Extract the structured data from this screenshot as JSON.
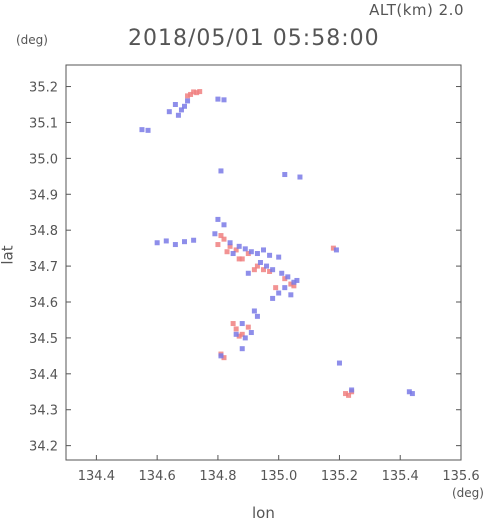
{
  "header": {
    "altitude": "ALT(km) 2.0",
    "datetime": "2018/05/01 05:58:00"
  },
  "chart_data": {
    "type": "scatter",
    "title": "2018/05/01 05:58:00",
    "subtitle": "ALT(km) 2.0",
    "xlabel": "lon",
    "ylabel": "lat",
    "xunit": "(deg)",
    "yunit": "(deg)",
    "xlim": [
      134.3,
      135.6
    ],
    "ylim": [
      34.16,
      35.26
    ],
    "xticks": [
      "134.4",
      "134.6",
      "134.8",
      "135.0",
      "135.2",
      "135.4",
      "135.6"
    ],
    "yticks": [
      "34.2",
      "34.3",
      "34.4",
      "34.5",
      "34.6",
      "34.7",
      "34.8",
      "34.9",
      "35.0",
      "35.1",
      "35.2"
    ],
    "grid": false,
    "colors": {
      "positive": "#f08080",
      "negative": "#7a7ae6",
      "axis": "#555555"
    },
    "series": [
      {
        "color": "#f08080",
        "points": [
          [
            134.72,
            35.185
          ],
          [
            134.73,
            35.183
          ],
          [
            134.71,
            35.178
          ],
          [
            134.74,
            35.186
          ],
          [
            134.7,
            35.174
          ],
          [
            134.81,
            34.785
          ],
          [
            134.82,
            34.775
          ],
          [
            134.8,
            34.76
          ],
          [
            134.84,
            34.755
          ],
          [
            134.83,
            34.74
          ],
          [
            134.86,
            34.745
          ],
          [
            134.9,
            34.735
          ],
          [
            134.88,
            34.72
          ],
          [
            134.93,
            34.7
          ],
          [
            134.95,
            34.69
          ],
          [
            134.97,
            34.685
          ],
          [
            135.02,
            34.665
          ],
          [
            135.04,
            34.65
          ],
          [
            135.05,
            34.645
          ],
          [
            134.99,
            34.64
          ],
          [
            134.92,
            34.69
          ],
          [
            134.87,
            34.72
          ],
          [
            134.85,
            34.54
          ],
          [
            134.86,
            34.525
          ],
          [
            134.88,
            34.51
          ],
          [
            134.9,
            34.53
          ],
          [
            134.87,
            34.505
          ],
          [
            134.81,
            34.455
          ],
          [
            134.82,
            34.445
          ],
          [
            135.18,
            34.75
          ],
          [
            135.23,
            34.34
          ],
          [
            135.22,
            34.345
          ],
          [
            135.24,
            34.35
          ]
        ]
      },
      {
        "color": "#7a7ae6",
        "points": [
          [
            134.66,
            35.15
          ],
          [
            134.68,
            35.135
          ],
          [
            134.64,
            35.13
          ],
          [
            134.69,
            35.145
          ],
          [
            134.67,
            35.12
          ],
          [
            134.7,
            35.16
          ],
          [
            134.55,
            35.08
          ],
          [
            134.57,
            35.078
          ],
          [
            134.8,
            35.165
          ],
          [
            134.82,
            35.163
          ],
          [
            134.81,
            34.965
          ],
          [
            135.02,
            34.955
          ],
          [
            135.07,
            34.948
          ],
          [
            134.6,
            34.765
          ],
          [
            134.63,
            34.77
          ],
          [
            134.66,
            34.76
          ],
          [
            134.69,
            34.768
          ],
          [
            134.72,
            34.772
          ],
          [
            134.8,
            34.83
          ],
          [
            134.82,
            34.815
          ],
          [
            134.79,
            34.79
          ],
          [
            134.84,
            34.765
          ],
          [
            134.87,
            34.755
          ],
          [
            134.89,
            34.748
          ],
          [
            134.91,
            34.74
          ],
          [
            134.93,
            34.735
          ],
          [
            134.95,
            34.745
          ],
          [
            134.97,
            34.73
          ],
          [
            135.0,
            34.725
          ],
          [
            134.94,
            34.71
          ],
          [
            134.96,
            34.7
          ],
          [
            134.98,
            34.69
          ],
          [
            135.01,
            34.68
          ],
          [
            135.03,
            34.67
          ],
          [
            135.06,
            34.66
          ],
          [
            135.02,
            34.64
          ],
          [
            135.0,
            34.625
          ],
          [
            134.98,
            34.61
          ],
          [
            135.04,
            34.62
          ],
          [
            134.92,
            34.575
          ],
          [
            134.93,
            34.56
          ],
          [
            134.88,
            34.54
          ],
          [
            134.86,
            34.51
          ],
          [
            134.89,
            34.5
          ],
          [
            134.91,
            34.515
          ],
          [
            134.88,
            34.47
          ],
          [
            134.81,
            34.45
          ],
          [
            135.2,
            34.43
          ],
          [
            135.24,
            34.355
          ],
          [
            135.43,
            34.35
          ],
          [
            135.44,
            34.345
          ],
          [
            135.19,
            34.745
          ],
          [
            134.9,
            34.68
          ],
          [
            134.85,
            34.735
          ],
          [
            135.05,
            34.655
          ]
        ]
      }
    ]
  }
}
